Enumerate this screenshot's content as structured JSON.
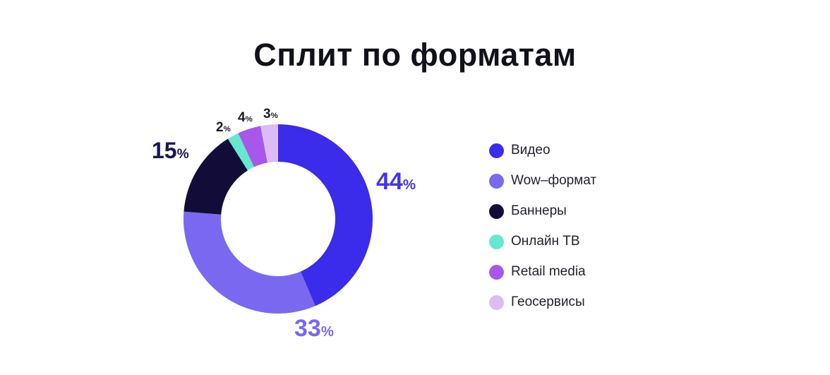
{
  "percent_sign": "%",
  "chart_data": {
    "type": "pie",
    "variant": "donut",
    "title": "Сплит по форматам",
    "unit": "%",
    "direction": "clockwise",
    "start_angle_deg": 0,
    "inner_radius_ratio": 0.6,
    "legend_position": "right",
    "segments": [
      {
        "label": "Видео",
        "value": 44,
        "color": "#3b2bea",
        "label_color": "#4433ec"
      },
      {
        "label": "Wow–формат",
        "value": 33,
        "color": "#7a68f0",
        "label_color": "#7a68f0"
      },
      {
        "label": "Баннеры",
        "value": 15,
        "color": "#120d38",
        "label_color": "#1c1650"
      },
      {
        "label": "Онлайн ТВ",
        "value": 2,
        "color": "#66e8cf",
        "label_color": "#1b1b24"
      },
      {
        "label": "Retail media",
        "value": 4,
        "color": "#a757e9",
        "label_color": "#1b1b24"
      },
      {
        "label": "Геосервисы",
        "value": 3,
        "color": "#dcbcf4",
        "label_color": "#1b1b24"
      }
    ]
  }
}
